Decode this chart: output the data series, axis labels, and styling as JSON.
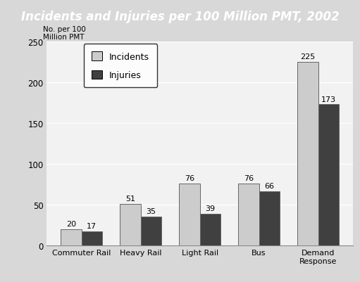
{
  "title": "Incidents and Injuries per 100 Million PMT, 2002",
  "ylabel_line1": "No. per 100",
  "ylabel_line2": "Million PMT",
  "categories": [
    "Commuter Rail",
    "Heavy Rail",
    "Light Rail",
    "Bus",
    "Demand\nResponse"
  ],
  "incidents": [
    20,
    51,
    76,
    76,
    225
  ],
  "injuries": [
    17,
    35,
    39,
    66,
    173
  ],
  "incident_color": "#cccccc",
  "injury_color": "#404040",
  "bar_edge_color": "#666666",
  "ylim": [
    0,
    250
  ],
  "yticks": [
    0,
    50,
    100,
    150,
    200,
    250
  ],
  "title_bg_color": "#1a1a1a",
  "title_text_color": "#ffffff",
  "title_fontsize": 12,
  "plot_bg_color": "#f2f2f2",
  "fig_bg_color": "#d8d8d8",
  "legend_incidents": "Incidents",
  "legend_injuries": "Injuries",
  "bar_width": 0.35,
  "value_fontsize": 8
}
